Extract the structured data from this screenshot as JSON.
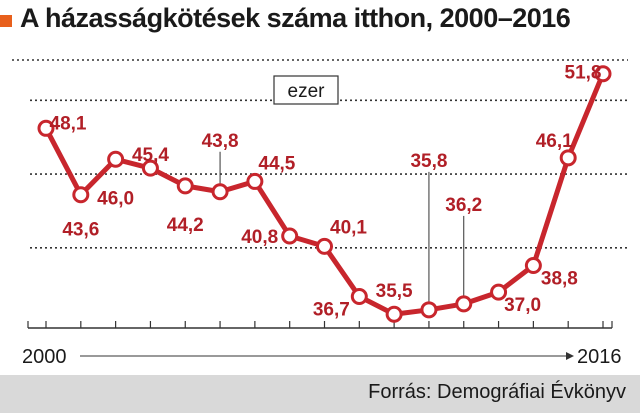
{
  "title": "A házasságkötések száma itthon, 2000–2016",
  "source": "Forrás: Demográfiai Évkönyv",
  "colors": {
    "accent": "#e8601c",
    "line": "#c8262d",
    "text_value": "#b11f27",
    "footer_bg": "#d9d9d9"
  },
  "chart_data": {
    "type": "line",
    "unit_label": "ezer",
    "x": [
      2000,
      2001,
      2002,
      2003,
      2004,
      2005,
      2006,
      2007,
      2008,
      2009,
      2010,
      2011,
      2012,
      2013,
      2014,
      2015,
      2016
    ],
    "values": [
      48.1,
      43.6,
      46.0,
      45.4,
      44.2,
      43.8,
      44.5,
      40.8,
      40.1,
      36.7,
      35.5,
      35.8,
      36.2,
      37.0,
      38.8,
      46.1,
      51.8
    ],
    "labels": [
      "48,1",
      "43,6",
      "46,0",
      "45,4",
      "44,2",
      "43,8",
      "44,5",
      "40,8",
      "40,1",
      "36,7",
      "35,5",
      "35,8",
      "36,2",
      "37,0",
      "38,8",
      "46,1",
      "51,8"
    ],
    "axis_start_label": "2000",
    "axis_end_label": "2016",
    "ylim": [
      34.5,
      53
    ],
    "grid_values": [
      40,
      45,
      50
    ],
    "grid": true,
    "legend": "none"
  }
}
